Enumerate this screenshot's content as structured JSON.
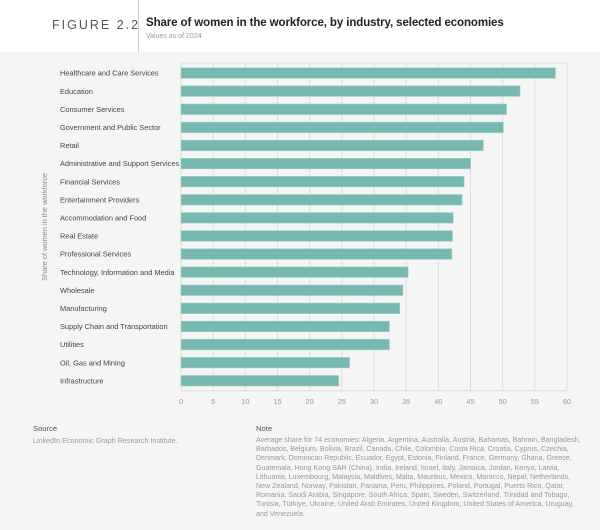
{
  "header": {
    "figure_label": "FIGURE 2.2",
    "title": "Share of women in the workforce, by industry, selected economies",
    "subtitle": "Values as of 2024"
  },
  "chart_data": {
    "type": "bar",
    "orientation": "horizontal",
    "title": "Share of women in the workforce, by industry, selected economies",
    "subtitle": "Values as of 2024",
    "xlabel": "",
    "ylabel": "Share of women in the workforce",
    "xlim": [
      0,
      60
    ],
    "xticks": [
      0,
      5,
      10,
      15,
      20,
      25,
      30,
      35,
      40,
      45,
      50,
      55,
      60
    ],
    "grid": true,
    "bar_color": "#77b8b0",
    "categories": [
      "Healthcare and Care Services",
      "Education",
      "Consumer Services",
      "Government and Public Sector",
      "Retail",
      "Administrative and Support Services",
      "Financial Services",
      "Entertainment Providers",
      "Accommodation and Food",
      "Real Estate",
      "Professional Services",
      "Technology, Information and Media",
      "Wholesale",
      "Manufacturing",
      "Supply Chain and Transportation",
      "Utilities",
      "Oil, Gas and Mining",
      "Infrastructure"
    ],
    "values": [
      58.2,
      52.7,
      50.6,
      50.1,
      47.0,
      45.0,
      44.0,
      43.7,
      42.3,
      42.2,
      42.1,
      35.3,
      34.5,
      34.0,
      32.4,
      32.4,
      26.2,
      24.5
    ]
  },
  "footer": {
    "source_title": "Source",
    "source_text": "LinkedIn Economic Graph Research Institute.",
    "note_title": "Note",
    "note_text": "Average share for 74 economies: Algeria, Argentina, Australia, Austria, Bahamas, Bahrain, Bangladesh, Barbados, Belgium, Bolivia, Brazil, Canada, Chile, Colombia, Costa Rica, Croatia, Cyprus, Czechia, Denmark, Dominican Republic, Ecuador, Egypt, Estonia, Finland, France, Germany, Ghana, Greece, Guatemala, Hong Kong SAR (China), India, Ireland, Israel, Italy, Jamaica, Jordan, Kenya, Latvia, Lithuania, Luxembourg, Malaysia, Maldives, Malta, Mauritius, Mexico, Morocco, Nepal, Netherlands, New Zealand, Norway, Pakistan, Panama, Peru, Philippines, Poland, Portugal, Puerto Rico, Qatar, Romania, Saudi Arabia, Singapore, South Africa, Spain, Sweden, Switzerland, Trinidad and Tobago, Tunisia, Türkiye, Ukraine, United Arab Emirates, United Kingdom, United States of America, Uruguay, and Venezuela."
  }
}
